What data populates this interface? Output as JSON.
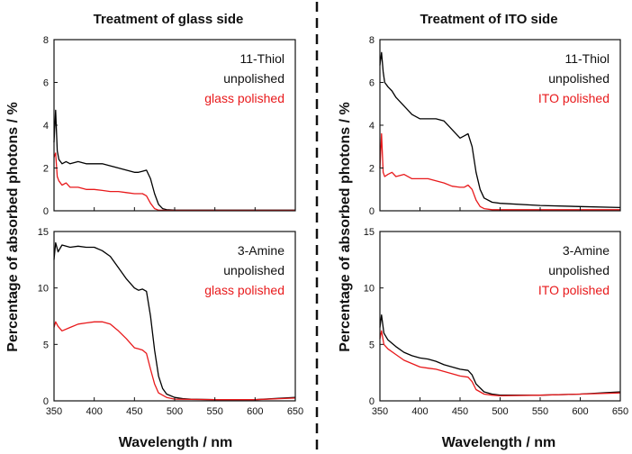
{
  "figure": {
    "ylabel": "Percentage of absorbed photons / %",
    "columns": [
      {
        "title": "Treatment of glass side",
        "xlabel": "Wavelength / nm"
      },
      {
        "title": "Treatment of ITO side",
        "xlabel": "Wavelength / nm"
      }
    ]
  },
  "chart_data": [
    {
      "type": "line",
      "column": "Treatment of glass side",
      "xlim": [
        350,
        650
      ],
      "ylim": [
        0,
        8
      ],
      "xticks": [
        350,
        400,
        450,
        500,
        550,
        600,
        650
      ],
      "yticks": [
        0,
        2,
        4,
        6,
        8
      ],
      "show_xticklabels": false,
      "legend": [
        "11-Thiol",
        "unpolished",
        "glass polished"
      ],
      "series": [
        {
          "name": "unpolished",
          "color": "#000000",
          "x": [
            350,
            352,
            354,
            356,
            360,
            365,
            370,
            380,
            390,
            400,
            410,
            420,
            430,
            440,
            450,
            455,
            460,
            465,
            470,
            475,
            480,
            485,
            490,
            500,
            520,
            550,
            600,
            650
          ],
          "y": [
            3.2,
            4.7,
            2.8,
            2.4,
            2.2,
            2.3,
            2.2,
            2.3,
            2.2,
            2.2,
            2.2,
            2.1,
            2.0,
            1.9,
            1.8,
            1.8,
            1.85,
            1.9,
            1.5,
            0.8,
            0.3,
            0.1,
            0.05,
            0.03,
            0.03,
            0.03,
            0.03,
            0.03
          ]
        },
        {
          "name": "glass polished",
          "color": "#e8191b",
          "x": [
            350,
            352,
            354,
            356,
            360,
            365,
            370,
            380,
            390,
            400,
            410,
            420,
            430,
            440,
            450,
            460,
            465,
            470,
            475,
            480,
            490,
            500,
            550,
            600,
            650
          ],
          "y": [
            2.5,
            2.7,
            1.6,
            1.4,
            1.2,
            1.3,
            1.1,
            1.1,
            1.0,
            1.0,
            0.95,
            0.9,
            0.9,
            0.85,
            0.8,
            0.8,
            0.7,
            0.35,
            0.1,
            0.03,
            0.02,
            0.02,
            0.02,
            0.02,
            0.02
          ]
        }
      ]
    },
    {
      "type": "line",
      "column": "Treatment of glass side",
      "xlim": [
        350,
        650
      ],
      "ylim": [
        0,
        15
      ],
      "xticks": [
        350,
        400,
        450,
        500,
        550,
        600,
        650
      ],
      "yticks": [
        0,
        5,
        10,
        15
      ],
      "show_xticklabels": true,
      "legend": [
        "3-Amine",
        "unpolished",
        "glass polished"
      ],
      "series": [
        {
          "name": "unpolished",
          "color": "#000000",
          "x": [
            350,
            352,
            355,
            360,
            370,
            380,
            390,
            400,
            410,
            420,
            430,
            440,
            450,
            455,
            460,
            465,
            470,
            475,
            480,
            485,
            490,
            500,
            510,
            520,
            550,
            600,
            650
          ],
          "y": [
            12.5,
            14.0,
            13.2,
            13.8,
            13.6,
            13.7,
            13.6,
            13.6,
            13.3,
            12.8,
            11.8,
            10.8,
            10.0,
            9.8,
            9.9,
            9.7,
            7.5,
            4.5,
            2.2,
            1.1,
            0.6,
            0.3,
            0.2,
            0.15,
            0.1,
            0.1,
            0.3
          ]
        },
        {
          "name": "glass polished",
          "color": "#e8191b",
          "x": [
            350,
            352,
            355,
            360,
            370,
            380,
            390,
            400,
            410,
            420,
            430,
            440,
            450,
            455,
            460,
            465,
            470,
            475,
            480,
            490,
            500,
            550,
            600,
            650
          ],
          "y": [
            6.5,
            7.0,
            6.6,
            6.2,
            6.5,
            6.8,
            6.9,
            7.0,
            7.0,
            6.8,
            6.2,
            5.5,
            4.7,
            4.6,
            4.5,
            4.2,
            2.8,
            1.5,
            0.7,
            0.3,
            0.15,
            0.1,
            0.1,
            0.25
          ]
        }
      ]
    },
    {
      "type": "line",
      "column": "Treatment of ITO side",
      "xlim": [
        350,
        650
      ],
      "ylim": [
        0,
        8
      ],
      "xticks": [
        350,
        400,
        450,
        500,
        550,
        600,
        650
      ],
      "yticks": [
        0,
        2,
        4,
        6,
        8
      ],
      "show_xticklabels": false,
      "legend": [
        "11-Thiol",
        "unpolished",
        "ITO polished"
      ],
      "series": [
        {
          "name": "unpolished",
          "color": "#000000",
          "x": [
            350,
            352,
            354,
            356,
            360,
            365,
            370,
            380,
            390,
            400,
            410,
            420,
            430,
            440,
            450,
            455,
            460,
            465,
            470,
            475,
            480,
            490,
            500,
            550,
            600,
            650
          ],
          "y": [
            6.8,
            7.4,
            6.5,
            6.0,
            5.8,
            5.6,
            5.3,
            4.9,
            4.5,
            4.3,
            4.3,
            4.3,
            4.2,
            3.8,
            3.4,
            3.5,
            3.6,
            3.0,
            1.8,
            1.0,
            0.6,
            0.4,
            0.35,
            0.25,
            0.2,
            0.15
          ]
        },
        {
          "name": "ITO polished",
          "color": "#e8191b",
          "x": [
            350,
            352,
            354,
            356,
            360,
            365,
            370,
            380,
            390,
            400,
            410,
            420,
            430,
            440,
            450,
            455,
            460,
            465,
            470,
            475,
            480,
            490,
            500,
            550,
            600,
            650
          ],
          "y": [
            2.0,
            3.6,
            1.8,
            1.6,
            1.7,
            1.8,
            1.6,
            1.7,
            1.5,
            1.5,
            1.5,
            1.4,
            1.3,
            1.15,
            1.1,
            1.1,
            1.2,
            1.0,
            0.5,
            0.2,
            0.1,
            0.05,
            0.05,
            0.05,
            0.05,
            0.05
          ]
        }
      ]
    },
    {
      "type": "line",
      "column": "Treatment of ITO side",
      "xlim": [
        350,
        650
      ],
      "ylim": [
        0,
        15
      ],
      "xticks": [
        350,
        400,
        450,
        500,
        550,
        600,
        650
      ],
      "yticks": [
        0,
        5,
        10,
        15
      ],
      "show_xticklabels": true,
      "legend": [
        "3-Amine",
        "unpolished",
        "ITO polished"
      ],
      "series": [
        {
          "name": "unpolished",
          "color": "#000000",
          "x": [
            350,
            352,
            355,
            360,
            370,
            380,
            390,
            400,
            410,
            420,
            430,
            440,
            450,
            460,
            465,
            470,
            480,
            490,
            500,
            520,
            550,
            600,
            650
          ],
          "y": [
            6.5,
            7.6,
            6.0,
            5.4,
            4.8,
            4.3,
            4.0,
            3.8,
            3.7,
            3.5,
            3.2,
            3.0,
            2.8,
            2.7,
            2.3,
            1.5,
            0.8,
            0.6,
            0.5,
            0.5,
            0.5,
            0.6,
            0.8
          ]
        },
        {
          "name": "ITO polished",
          "color": "#e8191b",
          "x": [
            350,
            352,
            355,
            360,
            370,
            380,
            390,
            400,
            410,
            420,
            430,
            440,
            450,
            460,
            465,
            470,
            480,
            490,
            500,
            550,
            600,
            650
          ],
          "y": [
            5.5,
            6.2,
            5.0,
            4.6,
            4.1,
            3.6,
            3.3,
            3.0,
            2.9,
            2.8,
            2.6,
            2.4,
            2.2,
            2.1,
            1.7,
            1.0,
            0.6,
            0.5,
            0.45,
            0.5,
            0.6,
            0.7
          ]
        }
      ]
    }
  ]
}
